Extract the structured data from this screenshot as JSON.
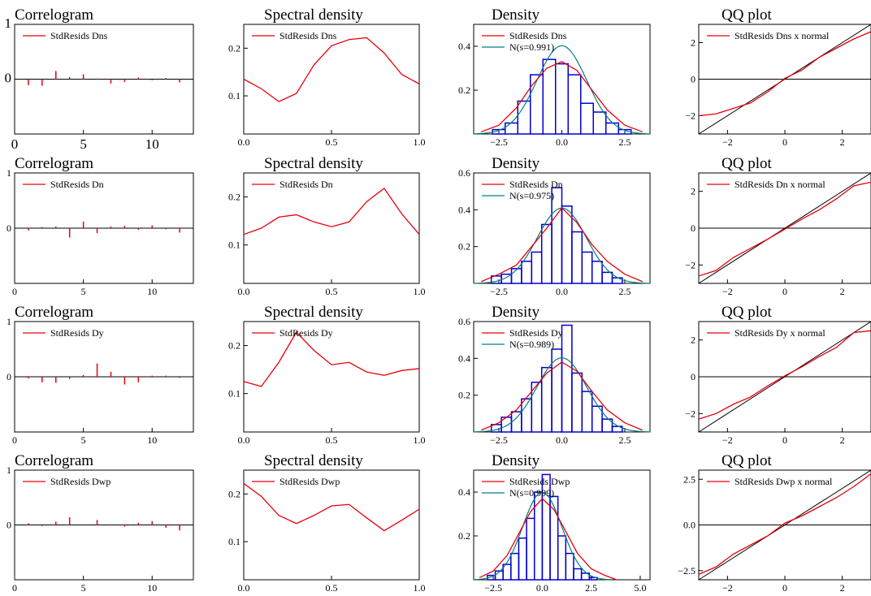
{
  "chart_data": [
    {
      "type": "bar",
      "title": "Correlogram",
      "legend": [
        "StdResids Dns"
      ],
      "xlim": [
        0,
        13
      ],
      "ylim": [
        -1,
        1
      ],
      "xticks": [
        "0",
        "5",
        "10"
      ],
      "yticks": [
        "0",
        "1"
      ],
      "lags": [
        1,
        2,
        3,
        4,
        5,
        6,
        7,
        8,
        9,
        10,
        11,
        12
      ],
      "values": [
        -0.11,
        -0.12,
        0.15,
        0.04,
        0.09,
        0.01,
        -0.08,
        -0.05,
        0.03,
        -0.02,
        0.02,
        -0.06
      ],
      "color": "#e8000b"
    },
    {
      "type": "line",
      "title": "Spectral density",
      "legend": [
        "StdResids Dns"
      ],
      "xlim": [
        0,
        1
      ],
      "ylim": [
        0.02,
        0.25
      ],
      "xticks": [
        "0.0",
        "0.5",
        "1.0"
      ],
      "yticks": [
        "0.1",
        "0.2"
      ],
      "x": [
        0,
        0.1,
        0.2,
        0.3,
        0.4,
        0.5,
        0.6,
        0.7,
        0.8,
        0.9,
        1.0
      ],
      "y": [
        0.135,
        0.115,
        0.088,
        0.105,
        0.165,
        0.205,
        0.218,
        0.222,
        0.19,
        0.145,
        0.125
      ],
      "color": "#e8000b"
    },
    {
      "type": "bar",
      "title": "Density",
      "legend": [
        "StdResids Dns",
        "N(s=0.991)"
      ],
      "xlim": [
        -3.5,
        3.5
      ],
      "ylim": [
        0,
        0.5
      ],
      "xticks": [
        "-2.5",
        "0.0",
        "2.5"
      ],
      "yticks": [
        "0.2",
        "0.4"
      ],
      "bins": [
        -2.5,
        -2.0,
        -1.5,
        -1.0,
        -0.5,
        0.0,
        0.5,
        1.0,
        1.5,
        2.0,
        2.5
      ],
      "values": [
        0.02,
        0.05,
        0.15,
        0.27,
        0.34,
        0.32,
        0.27,
        0.14,
        0.1,
        0.05,
        0.02
      ],
      "kernel_x": [
        -3.2,
        -2.5,
        -1.8,
        -1.2,
        -0.6,
        0,
        0.6,
        1.2,
        1.8,
        2.5,
        3.2
      ],
      "kernel_y": [
        0.01,
        0.04,
        0.12,
        0.22,
        0.3,
        0.33,
        0.29,
        0.2,
        0.11,
        0.04,
        0.01
      ],
      "normal_sd": 0.991,
      "colors": {
        "hist": "#0000d0",
        "kernel": "#e8000b",
        "normal": "#008080"
      }
    },
    {
      "type": "line",
      "title": "QQ plot",
      "legend": [
        "StdResids Dns x normal"
      ],
      "xlim": [
        -3,
        3
      ],
      "ylim": [
        -3,
        3
      ],
      "xticks": [
        "-2",
        "0",
        "2"
      ],
      "yticks": [
        "-2",
        "0",
        "2"
      ],
      "x": [
        -3,
        -2.4,
        -1.8,
        -1.2,
        -0.6,
        0,
        0.6,
        1.2,
        1.8,
        2.4,
        3
      ],
      "y": [
        -2.0,
        -1.9,
        -1.6,
        -1.3,
        -0.7,
        0.05,
        0.5,
        1.2,
        1.7,
        2.2,
        2.6
      ],
      "color": "#e8000b"
    },
    {
      "type": "bar",
      "title": "Correlogram",
      "legend": [
        "StdResids Dn"
      ],
      "xlim": [
        0,
        13
      ],
      "ylim": [
        -1,
        1
      ],
      "xticks": [
        "0",
        "5",
        "10"
      ],
      "yticks": [
        "0",
        "1"
      ],
      "lags": [
        1,
        2,
        3,
        4,
        5,
        6,
        7,
        8,
        9,
        10,
        11,
        12
      ],
      "values": [
        -0.04,
        0.02,
        0.03,
        -0.17,
        0.12,
        -0.09,
        0.03,
        0.04,
        -0.03,
        0.05,
        -0.02,
        -0.08
      ],
      "color": "#e8000b"
    },
    {
      "type": "line",
      "title": "Spectral density",
      "legend": [
        "StdResids Dn"
      ],
      "xlim": [
        0,
        1
      ],
      "ylim": [
        0.02,
        0.25
      ],
      "xticks": [
        "0.0",
        "0.5",
        "1.0"
      ],
      "yticks": [
        "0.1",
        "0.2"
      ],
      "x": [
        0,
        0.1,
        0.2,
        0.3,
        0.4,
        0.5,
        0.6,
        0.7,
        0.8,
        0.9,
        1.0
      ],
      "y": [
        0.122,
        0.135,
        0.158,
        0.163,
        0.148,
        0.138,
        0.148,
        0.19,
        0.218,
        0.165,
        0.122
      ],
      "color": "#e8000b"
    },
    {
      "type": "bar",
      "title": "Density",
      "legend": [
        "StdResids Dn",
        "N(s=0.975)"
      ],
      "xlim": [
        -3.5,
        3.5
      ],
      "ylim": [
        0,
        0.6
      ],
      "xticks": [
        "-2.5",
        "0.0",
        "2.5"
      ],
      "yticks": [
        "0.2",
        "0.4",
        "0.6"
      ],
      "bins": [
        -2.6,
        -2.2,
        -1.8,
        -1.4,
        -1.0,
        -0.6,
        -0.2,
        0.2,
        0.6,
        1.0,
        1.4,
        1.8,
        2.2
      ],
      "values": [
        0.04,
        0.05,
        0.08,
        0.12,
        0.17,
        0.32,
        0.52,
        0.42,
        0.28,
        0.17,
        0.12,
        0.06,
        0.03
      ],
      "kernel_x": [
        -3.2,
        -2.5,
        -1.8,
        -1.2,
        -0.6,
        0,
        0.6,
        1.2,
        1.8,
        2.5,
        3.2
      ],
      "kernel_y": [
        0.01,
        0.05,
        0.1,
        0.2,
        0.3,
        0.41,
        0.33,
        0.21,
        0.12,
        0.05,
        0.01
      ],
      "normal_sd": 0.975,
      "colors": {
        "hist": "#0000d0",
        "kernel": "#e8000b",
        "normal": "#008080"
      }
    },
    {
      "type": "line",
      "title": "QQ plot",
      "legend": [
        "StdResids Dn x normal"
      ],
      "xlim": [
        -3,
        3
      ],
      "ylim": [
        -3,
        3
      ],
      "xticks": [
        "-2",
        "0",
        "2"
      ],
      "yticks": [
        "-2",
        "0",
        "2"
      ],
      "x": [
        -3,
        -2.4,
        -1.8,
        -1.2,
        -0.6,
        0,
        0.6,
        1.2,
        1.8,
        2.4,
        3
      ],
      "y": [
        -2.6,
        -2.3,
        -1.6,
        -1.1,
        -0.6,
        -0.05,
        0.5,
        1.0,
        1.6,
        2.3,
        2.5
      ],
      "color": "#e8000b"
    },
    {
      "type": "bar",
      "title": "Correlogram",
      "legend": [
        "StdResids Dy"
      ],
      "xlim": [
        0,
        13
      ],
      "ylim": [
        -1,
        1
      ],
      "xticks": [
        "0",
        "5",
        "10"
      ],
      "yticks": [
        "0",
        "1"
      ],
      "lags": [
        1,
        2,
        3,
        4,
        5,
        6,
        7,
        8,
        9,
        10,
        11,
        12
      ],
      "values": [
        -0.03,
        -0.1,
        -0.11,
        -0.04,
        0.03,
        0.24,
        0.09,
        -0.14,
        -0.1,
        0.02,
        0.02,
        -0.02
      ],
      "color": "#e8000b"
    },
    {
      "type": "line",
      "title": "Spectral density",
      "legend": [
        "StdResids Dy"
      ],
      "xlim": [
        0,
        1
      ],
      "ylim": [
        0.02,
        0.25
      ],
      "xticks": [
        "0.0",
        "0.5",
        "1.0"
      ],
      "yticks": [
        "0.1",
        "0.2"
      ],
      "x": [
        0,
        0.1,
        0.2,
        0.3,
        0.4,
        0.5,
        0.6,
        0.7,
        0.8,
        0.9,
        1.0
      ],
      "y": [
        0.125,
        0.115,
        0.165,
        0.228,
        0.19,
        0.16,
        0.165,
        0.145,
        0.138,
        0.148,
        0.152
      ],
      "color": "#e8000b"
    },
    {
      "type": "bar",
      "title": "Density",
      "legend": [
        "StdResids Dy",
        "N(s=0.989)"
      ],
      "xlim": [
        -3.5,
        3.5
      ],
      "ylim": [
        0,
        0.6
      ],
      "xticks": [
        "-2.5",
        "0.0",
        "2.5"
      ],
      "yticks": [
        "0.2",
        "0.4",
        "0.6"
      ],
      "bins": [
        -2.6,
        -2.2,
        -1.8,
        -1.4,
        -1.0,
        -0.6,
        -0.2,
        0.2,
        0.6,
        1.0,
        1.4,
        1.8,
        2.2
      ],
      "values": [
        0.04,
        0.08,
        0.11,
        0.18,
        0.27,
        0.35,
        0.45,
        0.58,
        0.32,
        0.22,
        0.14,
        0.07,
        0.03
      ],
      "kernel_x": [
        -3.2,
        -2.5,
        -1.8,
        -1.2,
        -0.6,
        0,
        0.6,
        1.2,
        1.8,
        2.5,
        3.2
      ],
      "kernel_y": [
        0.01,
        0.05,
        0.12,
        0.22,
        0.32,
        0.38,
        0.33,
        0.22,
        0.12,
        0.05,
        0.01
      ],
      "normal_sd": 0.989,
      "colors": {
        "hist": "#0000d0",
        "kernel": "#e8000b",
        "normal": "#008080"
      }
    },
    {
      "type": "line",
      "title": "QQ plot",
      "legend": [
        "StdResids Dy x normal"
      ],
      "xlim": [
        -3,
        3
      ],
      "ylim": [
        -3,
        3
      ],
      "xticks": [
        "-2",
        "0",
        "2"
      ],
      "yticks": [
        "-2",
        "0",
        "2"
      ],
      "x": [
        -3,
        -2.4,
        -1.8,
        -1.2,
        -0.6,
        0,
        0.6,
        1.2,
        1.8,
        2.4,
        3
      ],
      "y": [
        -2.3,
        -2.0,
        -1.5,
        -1.1,
        -0.5,
        0.05,
        0.55,
        1.1,
        1.6,
        2.4,
        2.5
      ],
      "color": "#e8000b"
    },
    {
      "type": "bar",
      "title": "Correlogram",
      "legend": [
        "StdResids Dwp"
      ],
      "xlim": [
        0,
        13
      ],
      "ylim": [
        -1,
        1
      ],
      "xticks": [
        "0",
        "5",
        "10"
      ],
      "yticks": [
        "0",
        "1"
      ],
      "lags": [
        1,
        2,
        3,
        4,
        5,
        6,
        7,
        8,
        9,
        10,
        11,
        12
      ],
      "values": [
        0.03,
        -0.02,
        0.06,
        0.14,
        -0.01,
        0.09,
        0.01,
        -0.03,
        0.04,
        0.07,
        -0.05,
        -0.1
      ],
      "color": "#e8000b"
    },
    {
      "type": "line",
      "title": "Spectral density",
      "legend": [
        "StdResids Dwp"
      ],
      "xlim": [
        0,
        1
      ],
      "ylim": [
        0.02,
        0.25
      ],
      "xticks": [
        "0.0",
        "0.5",
        "1.0"
      ],
      "yticks": [
        "0.1",
        "0.2"
      ],
      "x": [
        0,
        0.1,
        0.2,
        0.3,
        0.4,
        0.5,
        0.6,
        0.7,
        0.8,
        0.9,
        1.0
      ],
      "y": [
        0.222,
        0.195,
        0.155,
        0.138,
        0.155,
        0.175,
        0.178,
        0.15,
        0.123,
        0.145,
        0.168
      ],
      "color": "#e8000b"
    },
    {
      "type": "bar",
      "title": "Density",
      "legend": [
        "StdResids Dwp",
        "N(s=0.999)"
      ],
      "xlim": [
        -3.5,
        5.5
      ],
      "ylim": [
        0,
        0.5
      ],
      "xticks": [
        "-2.5",
        "0.0",
        "2.5",
        "5.0"
      ],
      "yticks": [
        "0.2",
        "0.4"
      ],
      "bins": [
        -2.6,
        -2.2,
        -1.8,
        -1.4,
        -1.0,
        -0.6,
        -0.2,
        0.2,
        0.6,
        1.0,
        1.4,
        1.8,
        2.2,
        2.6
      ],
      "values": [
        0.02,
        0.04,
        0.07,
        0.12,
        0.19,
        0.28,
        0.4,
        0.48,
        0.38,
        0.2,
        0.12,
        0.05,
        0.03,
        0.01
      ],
      "kernel_x": [
        -3.2,
        -2.5,
        -1.8,
        -1.2,
        -0.6,
        0,
        0.6,
        1.2,
        1.8,
        2.5,
        3.2,
        3.8
      ],
      "kernel_y": [
        0.01,
        0.04,
        0.11,
        0.21,
        0.31,
        0.37,
        0.32,
        0.22,
        0.12,
        0.05,
        0.02,
        0.0
      ],
      "normal_sd": 0.999,
      "colors": {
        "hist": "#0000d0",
        "kernel": "#e8000b",
        "normal": "#008080"
      }
    },
    {
      "type": "line",
      "title": "QQ plot",
      "legend": [
        "StdResids Dwp x normal"
      ],
      "xlim": [
        -3,
        3
      ],
      "ylim": [
        -3,
        3
      ],
      "xticks": [
        "-2",
        "0",
        "2"
      ],
      "yticks": [
        "-2.5",
        "0.0",
        "2.5"
      ],
      "x": [
        -3,
        -2.4,
        -1.8,
        -1.2,
        -0.6,
        0,
        0.6,
        1.2,
        1.8,
        2.4,
        3
      ],
      "y": [
        -2.7,
        -2.3,
        -1.6,
        -1.1,
        -0.6,
        0.1,
        0.5,
        1.0,
        1.5,
        2.1,
        2.8
      ],
      "color": "#e8000b"
    }
  ]
}
